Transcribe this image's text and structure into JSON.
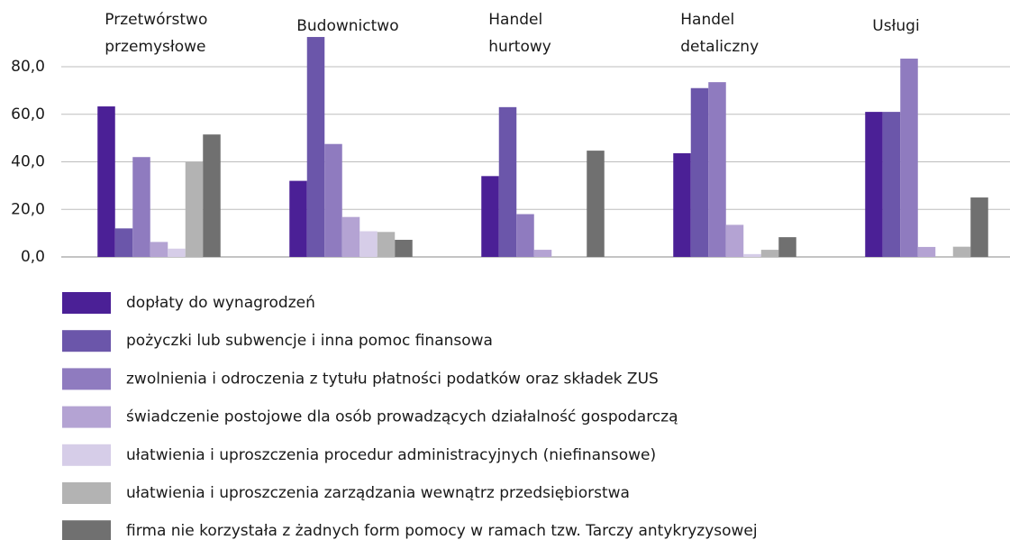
{
  "chart_data": {
    "type": "bar",
    "categories": [
      "Przetwórstwo przemysłowe",
      "Budownictwo",
      "Handel hurtowy",
      "Handel detaliczny",
      "Usługi"
    ],
    "series": [
      {
        "name": "dopłaty do wynagrodzeń",
        "color": "#4b2096",
        "values": [
          63.3,
          32,
          34,
          43.6,
          61
        ]
      },
      {
        "name": "pożyczki lub subwencje i inna pomoc finansowa",
        "color": "#6b56aa",
        "values": [
          12,
          92.5,
          63,
          71,
          61
        ]
      },
      {
        "name": "zwolnienia i odroczenia z tytułu płatności podatków oraz składek ZUS",
        "color": "#8f7bbf",
        "values": [
          42,
          47.5,
          18,
          73.5,
          83.4
        ]
      },
      {
        "name": "świadczenie postojowe dla osób prowadzących działalność gospodarczą",
        "color": "#b4a3d3",
        "values": [
          6.3,
          16.8,
          3,
          13.5,
          4.2
        ]
      },
      {
        "name": "ułatwienia i uproszczenia procedur administracyjnych (niefinansowe)",
        "color": "#d6cde8",
        "values": [
          3.5,
          10.8,
          0,
          1.2,
          0
        ]
      },
      {
        "name": "ułatwienia i uproszczenia zarządzania wewnątrz przedsiębiorstwa",
        "color": "#b3b3b3",
        "values": [
          40,
          10.5,
          0,
          3,
          4.3
        ]
      },
      {
        "name": "firma nie korzystała z żadnych form pomocy w ramach tzw. Tarczy antykryzysowej",
        "color": "#707070",
        "values": [
          51.5,
          7.2,
          44.7,
          8.3,
          25
        ]
      }
    ],
    "ylim": [
      0,
      100
    ],
    "yticks": [
      {
        "value": 0,
        "label": "0,0"
      },
      {
        "value": 20,
        "label": "20,0"
      },
      {
        "value": 40,
        "label": "40,0"
      },
      {
        "value": 60,
        "label": "60,0"
      },
      {
        "value": 80,
        "label": "80,0"
      }
    ],
    "grid": true,
    "legend": "bottom"
  }
}
